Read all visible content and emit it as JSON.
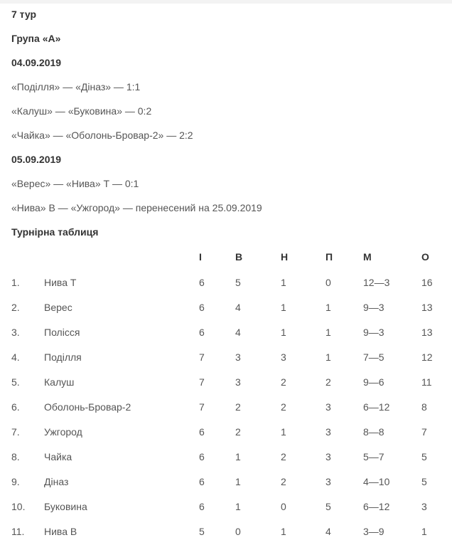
{
  "round": "7 тур",
  "group": "Група «А»",
  "days": [
    {
      "date": "04.09.2019",
      "matches": [
        "«Поділля» — «Діназ» — 1:1",
        "«Калуш» — «Буковина» — 0:2",
        "«Чайка» — «Оболонь-Бровар-2» — 2:2"
      ]
    },
    {
      "date": "05.09.2019",
      "matches": [
        "«Верес» — «Нива» Т — 0:1",
        "«Нива» В — «Ужгород» — перенесений на 25.09.2019"
      ]
    }
  ],
  "standings_title": "Турнірна таблиця",
  "table": {
    "headers": [
      "",
      "",
      "І",
      "В",
      "Н",
      "П",
      "М",
      "О"
    ],
    "rows": [
      [
        "1.",
        "Нива Т",
        "6",
        "5",
        "1",
        "0",
        "12—3",
        "16"
      ],
      [
        "2.",
        "Верес",
        "6",
        "4",
        "1",
        "1",
        "9—3",
        "13"
      ],
      [
        "3.",
        "Полісся",
        "6",
        "4",
        "1",
        "1",
        "9—3",
        "13"
      ],
      [
        "4.",
        "Поділля",
        "7",
        "3",
        "3",
        "1",
        "7—5",
        "12"
      ],
      [
        "5.",
        "Калуш",
        "7",
        "3",
        "2",
        "2",
        "9—6",
        "11"
      ],
      [
        "6.",
        "Оболонь-Бровар-2",
        "7",
        "2",
        "2",
        "3",
        "6—12",
        "8"
      ],
      [
        "7.",
        "Ужгород",
        "6",
        "2",
        "1",
        "3",
        "8—8",
        "7"
      ],
      [
        "8.",
        "Чайка",
        "6",
        "1",
        "2",
        "3",
        "5—7",
        "5"
      ],
      [
        "9.",
        "Діназ",
        "6",
        "1",
        "2",
        "3",
        "4—10",
        "5"
      ],
      [
        "10.",
        "Буковина",
        "6",
        "1",
        "0",
        "5",
        "6—12",
        "3"
      ],
      [
        "11.",
        "Нива В",
        "5",
        "0",
        "1",
        "4",
        "3—9",
        "1"
      ]
    ]
  }
}
